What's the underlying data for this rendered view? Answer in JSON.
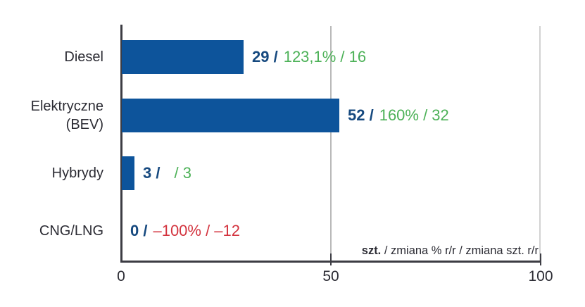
{
  "chart_data": {
    "type": "bar",
    "orientation": "horizontal",
    "title": "",
    "categories": [
      "Diesel",
      "Elektryczne (BEV)",
      "Hybrydy",
      "CNG/LNG"
    ],
    "values": [
      29,
      52,
      3,
      0
    ],
    "xlim": [
      0,
      100
    ],
    "x_ticks": [
      "0",
      "50",
      "100"
    ],
    "grid": "vertical gridlines at 50 and 100",
    "legend_note_bold": "szt.",
    "legend_note_rest": " / zmiana % r/r / zmiana szt. r/r",
    "rows": [
      {
        "label_lines": [
          "Diesel"
        ],
        "value": 29,
        "value_text": "29 /",
        "change_text": "123,1% / 16",
        "change_color": "#4cb157",
        "gap_before_change": false
      },
      {
        "label_lines": [
          "Elektryczne",
          "(BEV)"
        ],
        "value": 52,
        "value_text": "52 /",
        "change_text": "160% / 32",
        "change_color": "#4cb157",
        "gap_before_change": false
      },
      {
        "label_lines": [
          "Hybrydy"
        ],
        "value": 3,
        "value_text": "3 /",
        "change_text": "/ 3",
        "change_color": "#4cb157",
        "gap_before_change": true
      },
      {
        "label_lines": [
          "CNG/LNG"
        ],
        "value": 0,
        "value_text": "0 /",
        "change_text": "–100% / –12",
        "change_color": "#d3333e",
        "gap_before_change": false
      }
    ],
    "colors": {
      "bar": "#0d549b",
      "value_text": "#16497f",
      "positive": "#4cb157",
      "negative": "#d3333e",
      "axis": "#3c3c43",
      "gridline": "#c6c6c6",
      "label": "#2b2b33"
    }
  }
}
